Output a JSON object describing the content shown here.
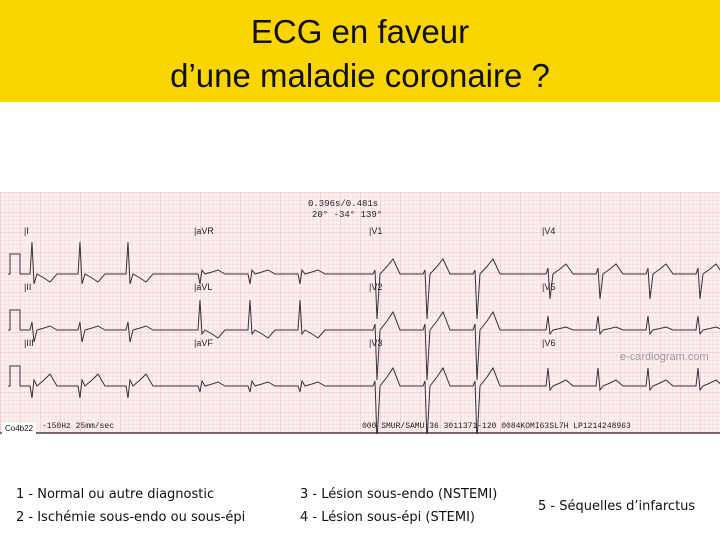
{
  "slide": {
    "title_line1": "ECG en faveur",
    "title_line2": "d’une maladie coronaire ?",
    "title_bg": "#fbd500"
  },
  "ecg": {
    "measure_line1": "0.396s/0.481s",
    "measure_line2": "20° -34° 139°",
    "leads": [
      "I",
      "aVR",
      "V1",
      "V4",
      "II",
      "aVL",
      "V2",
      "V5",
      "III",
      "aVF",
      "V3",
      "V6"
    ],
    "filter_text": "-150Hz 25mm/sec",
    "device_text": "000 SMUR/SAMU 36 3011371-120 0084KOMI63SL7H LP1214248963",
    "watermark": "e-cardiogram.com",
    "credit": "Co4b22",
    "grid_color": "#e9a9b8",
    "paper_color": "#fbeef0"
  },
  "options": [
    "1 - Normal ou autre diagnostic",
    "2 - Ischémie sous-endo ou sous-épi",
    "3 - Lésion sous-endo (NSTEMI)",
    "4 - Lésion sous-épi (STEMI)",
    "5 - Séquelles d’infarctus"
  ]
}
